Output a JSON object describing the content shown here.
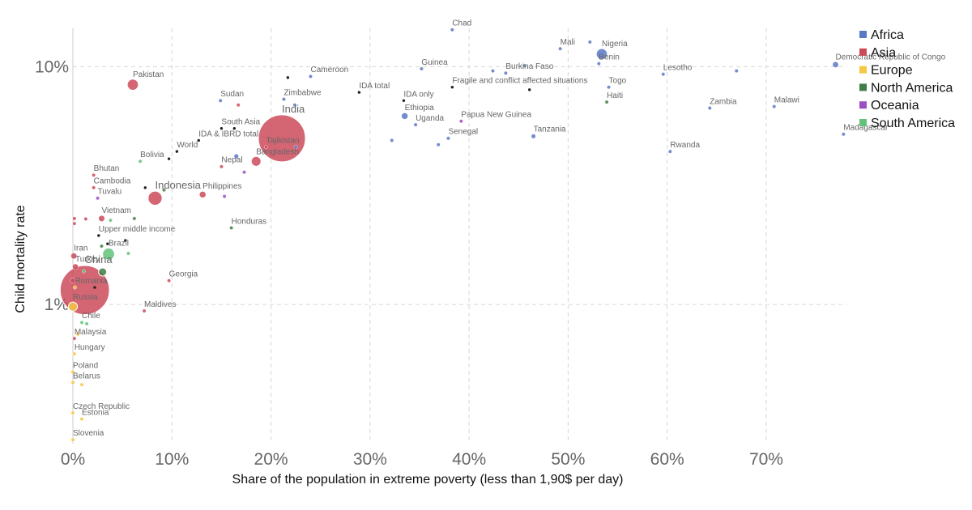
{
  "chart_data": {
    "type": "scatter",
    "xlabel": "Share of the population in extreme poverty (less than 1,90$ per day)",
    "ylabel": "Child mortality rate",
    "xlim": [
      0,
      78.1
    ],
    "ylim": [
      0.26,
      14.5
    ],
    "log_y": true,
    "grid": true,
    "legend": "upper right",
    "xticks": [
      {
        "value": 0,
        "label": "0%"
      },
      {
        "value": 10,
        "label": "10%"
      },
      {
        "value": 20,
        "label": "20%"
      },
      {
        "value": 30,
        "label": "30%"
      },
      {
        "value": 40,
        "label": "40%"
      },
      {
        "value": 50,
        "label": "50%"
      },
      {
        "value": 60,
        "label": "60%"
      },
      {
        "value": 70,
        "label": "70%"
      }
    ],
    "yticks": [
      {
        "value": 1,
        "label": "1%"
      },
      {
        "value": 10,
        "label": "10%"
      }
    ],
    "series": [
      {
        "name": "Africa",
        "color": "#5a78c4",
        "x": [
          38.3,
          49.2,
          53.4,
          53.1,
          52.2,
          77.0,
          59.6,
          67.0,
          35.2,
          43.7,
          45.6,
          42.4,
          24.0,
          54.1,
          14.9,
          21.3,
          22.4,
          64.3,
          70.8,
          33.5,
          34.6,
          77.8,
          46.5,
          37.9,
          32.2,
          36.9,
          60.3,
          16.5,
          22.5
        ],
        "values": [
          14.3,
          11.9,
          11.3,
          10.3,
          12.7,
          10.2,
          9.3,
          9.6,
          9.8,
          9.4,
          10.1,
          9.6,
          9.1,
          8.2,
          7.2,
          7.3,
          6.9,
          6.7,
          6.8,
          6.2,
          5.7,
          5.2,
          5.1,
          5.0,
          4.9,
          4.7,
          4.4,
          4.2,
          4.6
        ],
        "sizes": [
          15,
          18,
          190,
          11,
          3,
          80,
          2,
          2,
          12,
          19,
          12,
          8,
          24,
          8,
          40,
          16,
          3,
          17,
          18,
          100,
          42,
          25,
          55,
          15,
          3,
          5,
          12,
          57,
          5
        ],
        "labels": [
          "Chad",
          "Mali",
          "Nigeria",
          "Benin",
          null,
          "Democratic Republic of Congo",
          "Lesotho",
          null,
          "Guinea",
          "Burkina Faso",
          null,
          null,
          "Cameroon",
          "Togo",
          "Sudan",
          "Zimbabwe",
          null,
          "Zambia",
          "Malawi",
          "Ethiopia",
          "Uganda",
          "Madagascar",
          "Tanzania",
          "Senegal",
          null,
          null,
          "Rwanda",
          null,
          null
        ]
      },
      {
        "name": "Asia",
        "color": "#cd4a5b",
        "x": [
          6.05,
          16.7,
          21.1,
          19.5,
          18.5,
          15.0,
          8.3,
          13.1,
          2.1,
          2.1,
          2.9,
          0.1,
          0.25,
          1.2,
          9.7,
          7.2,
          0.15,
          0.15,
          0.15,
          1.3,
          0.0
        ],
        "values": [
          8.4,
          6.9,
          5.0,
          4.6,
          4.0,
          3.8,
          2.8,
          2.9,
          3.5,
          3.1,
          2.3,
          1.6,
          1.44,
          1.15,
          1.26,
          0.94,
          0.72,
          2.3,
          2.19,
          2.29,
          1.26
        ],
        "sizes": [
          190,
          3,
          1300,
          9,
          160,
          28,
          260,
          100,
          1,
          16,
          95,
          80,
          80,
          1380,
          4,
          0.4,
          31,
          3,
          3,
          3,
          69
        ],
        "labels": [
          "Pakistan",
          null,
          "India",
          "Tajikistan",
          "Bangladesh",
          "Nepal",
          "Indonesia",
          "Philippines",
          "Bhutan",
          "Cambodia",
          "Vietnam",
          "Iran",
          "Turkey",
          "China",
          "Georgia",
          "Maldives",
          "Malaysia",
          null,
          null,
          null,
          null
        ]
      },
      {
        "name": "Europe",
        "color": "#f6c744",
        "x": [
          0.0,
          0.2,
          0.15,
          0.0,
          0.0,
          0.9,
          0.0,
          0.9,
          0.0,
          0.5
        ],
        "values": [
          0.98,
          1.18,
          0.62,
          0.52,
          0.47,
          0.46,
          0.35,
          0.33,
          0.27,
          0.75
        ],
        "sizes": [
          145,
          20,
          10,
          38,
          9,
          5,
          11,
          1.3,
          2,
          3
        ],
        "labels": [
          "Russia",
          "Romania",
          "Hungary",
          "Poland",
          "Belarus",
          null,
          "Czech Republic",
          "Estonia",
          "Slovenia",
          null
        ]
      },
      {
        "name": "North America",
        "color": "#3f7f45",
        "x": [
          53.9,
          16.0,
          6.2,
          3.0,
          2.9,
          9.2
        ],
        "values": [
          7.1,
          2.1,
          2.3,
          1.37,
          1.76,
          3.03
        ],
        "sizes": [
          11,
          9,
          5,
          125,
          4,
          4
        ],
        "labels": [
          "Haiti",
          "Honduras",
          null,
          null,
          null,
          null
        ]
      },
      {
        "name": "Oceania",
        "color": "#9c4fc2",
        "x": [
          39.2,
          17.3,
          15.3,
          2.5
        ],
        "values": [
          5.9,
          3.6,
          2.85,
          2.8
        ],
        "sizes": [
          8,
          1,
          1,
          0.01
        ],
        "labels": [
          "Papua New Guinea",
          null,
          null,
          "Tuvalu"
        ]
      },
      {
        "name": "South America",
        "color": "#62c27a",
        "x": [
          6.8,
          3.6,
          5.6,
          3.8,
          0.9,
          1.4,
          1.1
        ],
        "values": [
          4.0,
          1.63,
          1.64,
          2.26,
          0.84,
          0.83,
          1.38
        ],
        "sizes": [
          11,
          210,
          32,
          17,
          18,
          3,
          17
        ],
        "labels": [
          "Bolivia",
          "Brazil",
          null,
          null,
          "Chile",
          null,
          null
        ]
      }
    ],
    "aggregates": {
      "color": "#222222",
      "x": [
        10.5,
        28.9,
        33.4,
        38.3,
        12.7,
        15.0,
        2.6,
        21.7,
        46.1,
        16.3,
        9.7,
        7.3,
        5.3,
        3.5,
        2.2
      ],
      "values": [
        4.4,
        7.8,
        7.2,
        8.2,
        4.9,
        5.5,
        1.95,
        9.0,
        8.0,
        5.5,
        4.1,
        3.1,
        1.86,
        1.8,
        1.18
      ],
      "labels": [
        "World",
        "IDA total",
        "IDA only",
        "Fragile and conflict affected situations",
        "IDA & IBRD total",
        "South Asia",
        "Upper middle income",
        null,
        null,
        null,
        null,
        null,
        null,
        null,
        null
      ]
    }
  }
}
